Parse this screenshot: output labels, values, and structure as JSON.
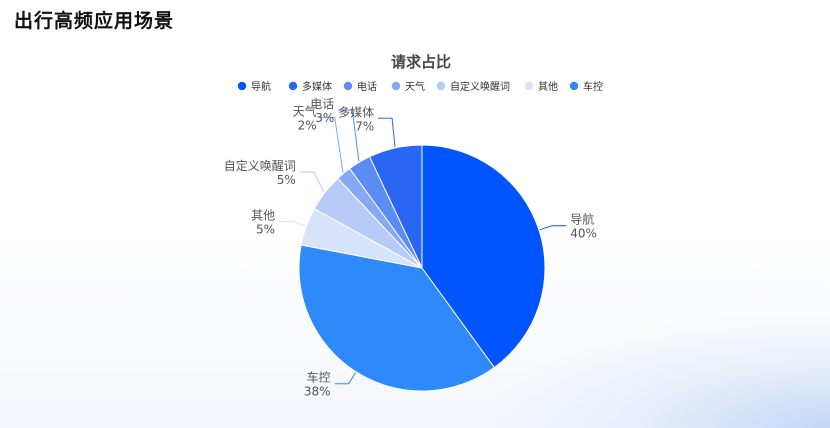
{
  "page": {
    "title": "出行高频应用场景"
  },
  "colors": {
    "导航": "#0055ff",
    "多媒体": "#2a66f4",
    "电话": "#5b8cf3",
    "天气": "#86a8f5",
    "自定义唤醒词": "#b7caf8",
    "其他": "#d7e2fb",
    "车控": "#2e89fb"
  },
  "chart_data": {
    "type": "pie",
    "title": "请求占比",
    "legend_position": "top",
    "legend": [
      "导航",
      "多媒体",
      "电话",
      "天气",
      "自定义唤醒词",
      "其他",
      "车控"
    ],
    "order": [
      "导航",
      "车控",
      "其他",
      "自定义唤醒词",
      "天气",
      "电话",
      "多媒体"
    ],
    "slices": {
      "导航": {
        "label": "导航",
        "value": 40,
        "percent_label": "40%"
      },
      "车控": {
        "label": "车控",
        "value": 38,
        "percent_label": "38%"
      },
      "其他": {
        "label": "其他",
        "value": 5,
        "percent_label": "5%"
      },
      "自定义唤醒词": {
        "label": "自定义唤醒词",
        "value": 5,
        "percent_label": "5%"
      },
      "天气": {
        "label": "天气",
        "value": 2,
        "percent_label": "2%"
      },
      "电话": {
        "label": "电话",
        "value": 3,
        "percent_label": "3%"
      },
      "多媒体": {
        "label": "多媒体",
        "value": 7,
        "percent_label": "7%"
      }
    }
  }
}
